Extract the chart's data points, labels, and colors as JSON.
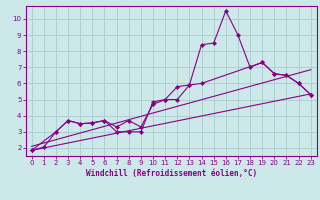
{
  "title": "",
  "xlabel": "Windchill (Refroidissement éolien,°C)",
  "bg_color": "#cce8e8",
  "grid_color": "#aacccc",
  "line_color": "#880088",
  "xlim": [
    -0.5,
    23.5
  ],
  "ylim": [
    1.5,
    10.8
  ],
  "xticks": [
    0,
    1,
    2,
    3,
    4,
    5,
    6,
    7,
    8,
    9,
    10,
    11,
    12,
    13,
    14,
    15,
    16,
    17,
    18,
    19,
    20,
    21,
    22,
    23
  ],
  "yticks": [
    2,
    3,
    4,
    5,
    6,
    7,
    8,
    9,
    10
  ],
  "line1_x": [
    0,
    1,
    2,
    3,
    4,
    5,
    6,
    7,
    8,
    9,
    10,
    11,
    12,
    13,
    14,
    15,
    16,
    17,
    18,
    19,
    20,
    21,
    22,
    23
  ],
  "line1_y": [
    1.85,
    2.05,
    3.0,
    3.7,
    3.5,
    3.55,
    3.7,
    3.0,
    3.0,
    3.0,
    4.85,
    5.0,
    5.8,
    5.9,
    8.4,
    8.5,
    10.5,
    9.0,
    7.0,
    7.3,
    6.6,
    6.5,
    6.0,
    5.3
  ],
  "line2_x": [
    0,
    2,
    3,
    4,
    5,
    6,
    7,
    8,
    9,
    10,
    11,
    12,
    13,
    14,
    19,
    20,
    21,
    22,
    23
  ],
  "line2_y": [
    1.85,
    3.0,
    3.7,
    3.5,
    3.55,
    3.7,
    3.3,
    3.7,
    3.3,
    4.7,
    5.0,
    5.0,
    5.9,
    6.0,
    7.3,
    6.6,
    6.5,
    6.0,
    5.3
  ],
  "line3_x": [
    0,
    23
  ],
  "line3_y": [
    1.85,
    5.35
  ],
  "line4_x": [
    0,
    23
  ],
  "line4_y": [
    2.1,
    6.85
  ]
}
